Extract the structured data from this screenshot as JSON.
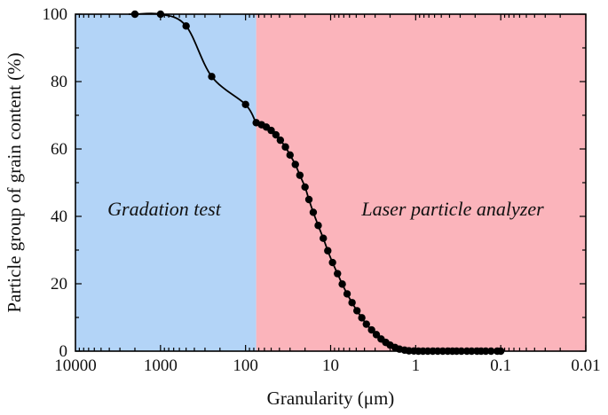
{
  "chart_data": {
    "type": "line",
    "xscale": "log",
    "x_reversed": true,
    "xlim": [
      10000,
      0.01
    ],
    "ylim": [
      0,
      100
    ],
    "xlabel": "Granularity (μm)",
    "ylabel": "Particle group of grain content (%)",
    "xticks": [
      {
        "value": 10000,
        "label": "10000"
      },
      {
        "value": 1000,
        "label": "1000"
      },
      {
        "value": 100,
        "label": "100"
      },
      {
        "value": 10,
        "label": "10"
      },
      {
        "value": 1,
        "label": "1"
      },
      {
        "value": 0.1,
        "label": "0.1"
      },
      {
        "value": 0.01,
        "label": "0.01"
      }
    ],
    "yticks": [
      {
        "value": 0,
        "label": "0"
      },
      {
        "value": 20,
        "label": "20"
      },
      {
        "value": 40,
        "label": "40"
      },
      {
        "value": 60,
        "label": "60"
      },
      {
        "value": 80,
        "label": "80"
      },
      {
        "value": 100,
        "label": "100"
      }
    ],
    "regions": [
      {
        "name": "gradation-region",
        "label": "Gradation test",
        "x_from": 10000,
        "x_to": 75,
        "color": "#b3d4f7"
      },
      {
        "name": "laser-region",
        "label": "Laser particle analyzer",
        "x_from": 75,
        "x_to": 0.01,
        "color": "#fbb4bb"
      }
    ],
    "line_color": "#000000",
    "marker_color": "#000000",
    "series": [
      {
        "name": "Gradation test",
        "x": [
          2000,
          1000,
          500,
          250,
          100
        ],
        "y": [
          100,
          100,
          96.5,
          81.5,
          73.2
        ]
      },
      {
        "name": "Laser particle analyzer",
        "x": [
          75,
          65,
          57,
          50,
          44,
          39,
          34,
          30,
          26,
          23,
          20,
          18,
          16,
          14,
          12.2,
          10.8,
          9.5,
          8.3,
          7.3,
          6.4,
          5.6,
          4.9,
          4.3,
          3.8,
          3.3,
          2.9,
          2.55,
          2.25,
          2.0,
          1.75,
          1.55,
          1.35,
          1.2,
          1.05,
          0.93,
          0.82,
          0.72,
          0.63,
          0.55,
          0.48,
          0.42,
          0.37,
          0.33,
          0.29,
          0.25,
          0.22,
          0.19,
          0.17,
          0.15,
          0.13,
          0.11,
          0.1
        ],
        "y": [
          67.8,
          67.2,
          66.5,
          65.5,
          64.2,
          62.6,
          60.6,
          58.2,
          55.4,
          52.2,
          48.7,
          45.0,
          41.2,
          37.3,
          33.5,
          29.8,
          26.3,
          23.0,
          19.9,
          17.0,
          14.4,
          12.0,
          9.9,
          8.0,
          6.3,
          4.9,
          3.6,
          2.6,
          1.8,
          1.1,
          0.6,
          0.3,
          0.1,
          0.05,
          0,
          0,
          0,
          0,
          0,
          0,
          0,
          0,
          0,
          0,
          0,
          0,
          0,
          0,
          0,
          0,
          0,
          0
        ]
      }
    ]
  }
}
